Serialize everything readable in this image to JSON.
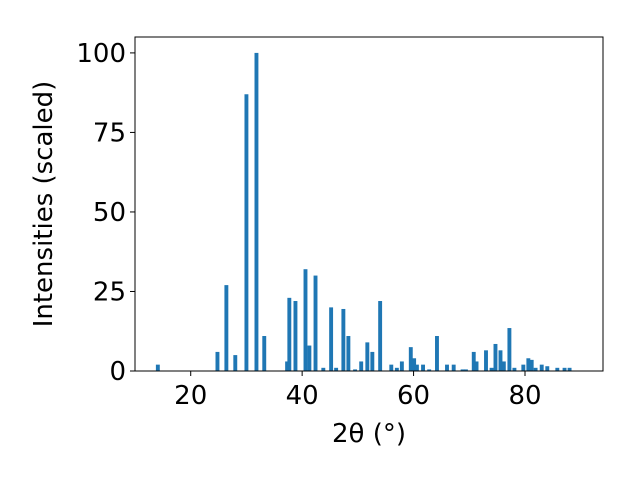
{
  "chart_data": {
    "type": "bar",
    "xlabel": "2θ (°)",
    "ylabel": "Intensities (scaled)",
    "color": "#1f77b4",
    "bar_width": 0.7,
    "x": [
      14.1,
      24.8,
      26.4,
      28.0,
      30.0,
      31.8,
      33.2,
      37.3,
      37.7,
      38.8,
      40.6,
      41.3,
      42.4,
      43.8,
      45.2,
      46.1,
      47.4,
      48.3,
      49.5,
      50.6,
      51.7,
      52.6,
      54.0,
      56.0,
      57.0,
      57.9,
      59.5,
      60.1,
      60.6,
      61.7,
      62.8,
      64.2,
      66.0,
      67.2,
      68.8,
      69.4,
      70.8,
      71.3,
      73.0,
      74.0,
      74.7,
      75.6,
      76.2,
      77.2,
      78.1,
      79.7,
      80.6,
      81.2,
      81.9,
      83.0,
      84.0,
      85.8,
      87.1,
      88.0
    ],
    "values": [
      2,
      6,
      27,
      5,
      87,
      100,
      11,
      3,
      23,
      22,
      32,
      8,
      30,
      1,
      20,
      1,
      19.5,
      11,
      0.5,
      3,
      9,
      6,
      22,
      2,
      1,
      3,
      7.5,
      4,
      2,
      2,
      0.5,
      11,
      2,
      2,
      0.5,
      0.5,
      6,
      3,
      6.5,
      1,
      8.5,
      6.5,
      3,
      13.5,
      1,
      2,
      4,
      3.5,
      1,
      2,
      1.5,
      1,
      1,
      1
    ],
    "xlim": [
      10,
      94
    ],
    "ylim": [
      0,
      105
    ],
    "xticks": [
      20,
      40,
      60,
      80
    ],
    "yticks": [
      0,
      25,
      50,
      75,
      100
    ]
  }
}
